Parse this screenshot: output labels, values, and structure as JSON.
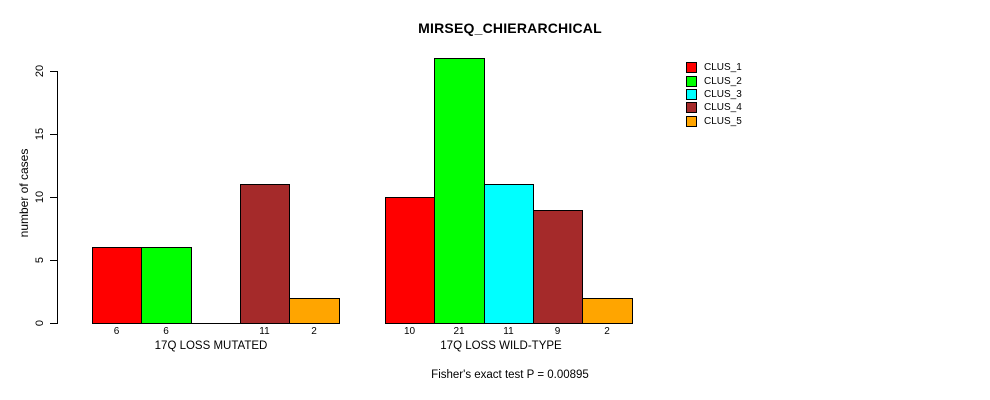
{
  "chart_data": {
    "type": "bar",
    "title": "MIRSEQ_CHIERARCHICAL",
    "ylabel": "number of cases",
    "xlabel": "",
    "ylim": [
      0,
      21
    ],
    "yticks": [
      0,
      5,
      10,
      15,
      20
    ],
    "grid": false,
    "legend_position": "top-right",
    "legend": [
      {
        "label": "CLUS_1",
        "color": "#FF0000"
      },
      {
        "label": "CLUS_2",
        "color": "#00FF00"
      },
      {
        "label": "CLUS_3",
        "color": "#00FFFF"
      },
      {
        "label": "CLUS_4",
        "color": "#A52A2A"
      },
      {
        "label": "CLUS_5",
        "color": "#FFA500"
      }
    ],
    "groups": [
      {
        "label": "17Q LOSS MUTATED",
        "values": [
          6,
          6,
          0,
          11,
          2
        ],
        "bar_labels": [
          "6",
          "6",
          "",
          "11",
          "2"
        ]
      },
      {
        "label": "17Q LOSS WILD-TYPE",
        "values": [
          10,
          21,
          11,
          9,
          2
        ],
        "bar_labels": [
          "10",
          "21",
          "11",
          "9",
          "2"
        ]
      }
    ],
    "footnote": "Fisher's exact test P = 0.00895",
    "axis_color": "#000000",
    "background_color": "#FFFFFF"
  }
}
